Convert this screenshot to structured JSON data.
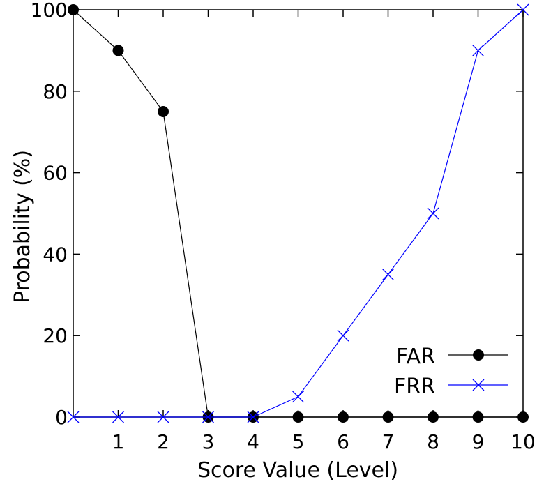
{
  "chart_data": {
    "type": "line",
    "xlabel": "Score Value (Level)",
    "ylabel": "Probability (%)",
    "xlim": [
      0,
      10
    ],
    "ylim": [
      0,
      100
    ],
    "x_ticks": [
      1,
      2,
      3,
      4,
      5,
      6,
      7,
      8,
      9,
      10
    ],
    "y_ticks": [
      0,
      20,
      40,
      60,
      80,
      100
    ],
    "grid": false,
    "legend_position": "bottom-right",
    "x": [
      0,
      1,
      2,
      3,
      4,
      5,
      6,
      7,
      8,
      9,
      10
    ],
    "series": [
      {
        "name": "FAR",
        "values": [
          100,
          90,
          75,
          0,
          0,
          0,
          0,
          0,
          0,
          0,
          0
        ],
        "color": "#000000",
        "marker": "filled-circle"
      },
      {
        "name": "FRR",
        "values": [
          0,
          0,
          0,
          0,
          0,
          5,
          20,
          35,
          50,
          90,
          100
        ],
        "color": "#0000ff",
        "marker": "cross"
      }
    ]
  }
}
